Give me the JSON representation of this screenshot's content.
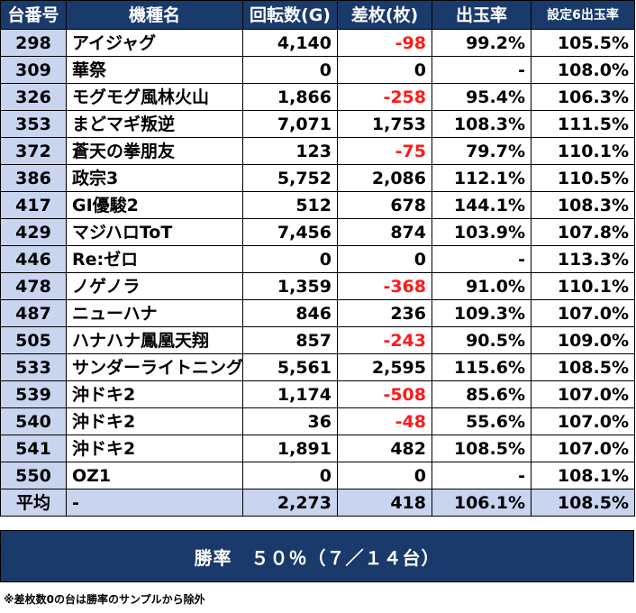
{
  "headers": [
    "台番号",
    "機種名",
    "回転数(G)",
    "差枚(枚)",
    "出玉率",
    "設定6出玉率"
  ],
  "rows": [
    {
      "no": "298",
      "name": "アイジャグ",
      "spins": "4,140",
      "diff": "-98",
      "rate": "99.2%",
      "s6": "105.5%",
      "neg": true
    },
    {
      "no": "309",
      "name": "華祭",
      "spins": "0",
      "diff": "0",
      "rate": "-",
      "s6": "108.0%",
      "neg": false
    },
    {
      "no": "326",
      "name": "モグモグ風林火山",
      "spins": "1,866",
      "diff": "-258",
      "rate": "95.4%",
      "s6": "106.3%",
      "neg": true
    },
    {
      "no": "353",
      "name": "まどマギ叛逆",
      "spins": "7,071",
      "diff": "1,753",
      "rate": "108.3%",
      "s6": "111.5%",
      "neg": false
    },
    {
      "no": "372",
      "name": "蒼天の拳朋友",
      "spins": "123",
      "diff": "-75",
      "rate": "79.7%",
      "s6": "110.1%",
      "neg": true
    },
    {
      "no": "386",
      "name": "政宗3",
      "spins": "5,752",
      "diff": "2,086",
      "rate": "112.1%",
      "s6": "110.5%",
      "neg": false
    },
    {
      "no": "417",
      "name": "GⅠ優駿2",
      "spins": "512",
      "diff": "678",
      "rate": "144.1%",
      "s6": "108.3%",
      "neg": false
    },
    {
      "no": "429",
      "name": "マジハロToT",
      "spins": "7,456",
      "diff": "874",
      "rate": "103.9%",
      "s6": "107.8%",
      "neg": false
    },
    {
      "no": "446",
      "name": "Re:ゼロ",
      "spins": "0",
      "diff": "0",
      "rate": "-",
      "s6": "113.3%",
      "neg": false
    },
    {
      "no": "478",
      "name": "ノゲノラ",
      "spins": "1,359",
      "diff": "-368",
      "rate": "91.0%",
      "s6": "110.1%",
      "neg": true
    },
    {
      "no": "487",
      "name": "ニューハナ",
      "spins": "846",
      "diff": "236",
      "rate": "109.3%",
      "s6": "107.0%",
      "neg": false
    },
    {
      "no": "505",
      "name": "ハナハナ鳳凰天翔",
      "spins": "857",
      "diff": "-243",
      "rate": "90.5%",
      "s6": "109.0%",
      "neg": true
    },
    {
      "no": "533",
      "name": "サンダーライトニング",
      "spins": "5,561",
      "diff": "2,595",
      "rate": "115.6%",
      "s6": "108.5%",
      "neg": false
    },
    {
      "no": "539",
      "name": "沖ドキ2",
      "spins": "1,174",
      "diff": "-508",
      "rate": "85.6%",
      "s6": "107.0%",
      "neg": true
    },
    {
      "no": "540",
      "name": "沖ドキ2",
      "spins": "36",
      "diff": "-48",
      "rate": "55.6%",
      "s6": "107.0%",
      "neg": true
    },
    {
      "no": "541",
      "name": "沖ドキ2",
      "spins": "1,891",
      "diff": "482",
      "rate": "108.5%",
      "s6": "107.0%",
      "neg": false
    },
    {
      "no": "550",
      "name": "OZ1",
      "spins": "0",
      "diff": "0",
      "rate": "-",
      "s6": "108.1%",
      "neg": false
    }
  ],
  "average": {
    "no": "平均",
    "name": "-",
    "spins": "2,273",
    "diff": "418",
    "rate": "106.1%",
    "s6": "108.5%"
  },
  "win_rate": "勝率　５０％（７／１４台）",
  "note": "※差枚数0の台は勝率のサンプルから除外",
  "colors": {
    "header_bg": "#1a3a6b",
    "label_bg": "#c9d4ee",
    "negative": "#ff1a1a"
  }
}
